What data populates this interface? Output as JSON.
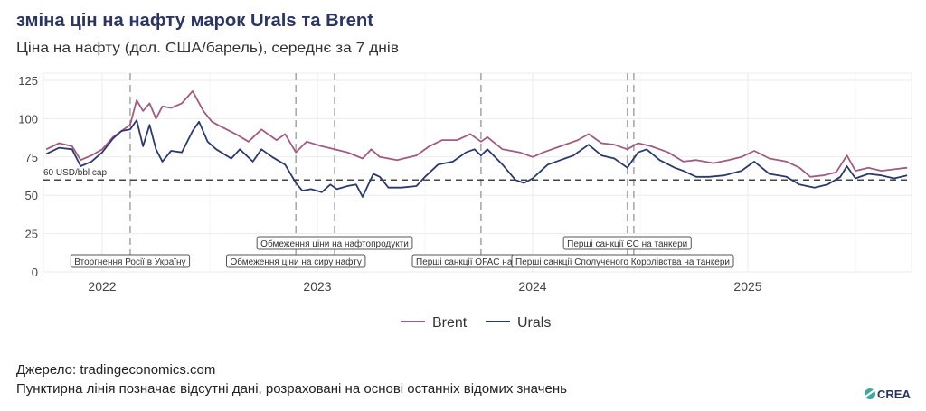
{
  "colors": {
    "brent": "#a05c80",
    "urals": "#2b3a6b",
    "title": "#2b3561"
  },
  "chart_data": {
    "type": "line",
    "title": "зміна цін на нафту марок Urals та Brent",
    "subtitle": "Ціна на нафту (дол. США/барель), середнє за 7 днів",
    "xlabel": "",
    "ylabel": "",
    "ylim": [
      0,
      125
    ],
    "xlim": [
      2021.72,
      2025.78
    ],
    "yticks": [
      0,
      25,
      50,
      75,
      100,
      125
    ],
    "xticks": [
      {
        "value": 2022,
        "label": "2022"
      },
      {
        "value": 2023,
        "label": "2023"
      },
      {
        "value": 2024,
        "label": "2024"
      },
      {
        "value": 2025,
        "label": "2025"
      }
    ],
    "grid": true,
    "legend_position": "bottom",
    "reference_line": {
      "value": 60,
      "label": "60 USD/bbl cap"
    },
    "events": [
      {
        "date": 2022.13,
        "label": "Вторгнення Росії в Україну",
        "row": 1
      },
      {
        "date": 2022.9,
        "label": "Обмеження ціни на сиру нафту",
        "row": 1
      },
      {
        "date": 2023.08,
        "label": "Обмеження ціни на нафтопродукти",
        "row": 0
      },
      {
        "date": 2023.76,
        "label": "Перші санкції OFAC на танкери",
        "row": 1
      },
      {
        "date": 2024.44,
        "label": "Перші санкції ЄС на танкери",
        "row": 0
      },
      {
        "date": 2024.47,
        "label": "Перші санкції Сполученого Королівства на танкери",
        "row": 1
      }
    ],
    "series": [
      {
        "name": "Brent",
        "points": [
          [
            2021.74,
            80
          ],
          [
            2021.8,
            84
          ],
          [
            2021.86,
            82
          ],
          [
            2021.9,
            73
          ],
          [
            2021.95,
            76
          ],
          [
            2022.0,
            80
          ],
          [
            2022.05,
            88
          ],
          [
            2022.09,
            92
          ],
          [
            2022.13,
            96
          ],
          [
            2022.16,
            112
          ],
          [
            2022.19,
            105
          ],
          [
            2022.22,
            110
          ],
          [
            2022.25,
            100
          ],
          [
            2022.28,
            108
          ],
          [
            2022.32,
            107
          ],
          [
            2022.37,
            110
          ],
          [
            2022.42,
            118
          ],
          [
            2022.47,
            105
          ],
          [
            2022.51,
            98
          ],
          [
            2022.55,
            95
          ],
          [
            2022.62,
            90
          ],
          [
            2022.68,
            85
          ],
          [
            2022.74,
            93
          ],
          [
            2022.81,
            86
          ],
          [
            2022.85,
            90
          ],
          [
            2022.9,
            78
          ],
          [
            2022.95,
            85
          ],
          [
            2023.02,
            82
          ],
          [
            2023.08,
            80
          ],
          [
            2023.14,
            78
          ],
          [
            2023.21,
            74
          ],
          [
            2023.25,
            80
          ],
          [
            2023.29,
            75
          ],
          [
            2023.37,
            73
          ],
          [
            2023.46,
            76
          ],
          [
            2023.52,
            82
          ],
          [
            2023.58,
            86
          ],
          [
            2023.65,
            86
          ],
          [
            2023.71,
            90
          ],
          [
            2023.76,
            85
          ],
          [
            2023.79,
            88
          ],
          [
            2023.86,
            80
          ],
          [
            2023.94,
            78
          ],
          [
            2024.0,
            75
          ],
          [
            2024.05,
            78
          ],
          [
            2024.13,
            82
          ],
          [
            2024.21,
            86
          ],
          [
            2024.26,
            90
          ],
          [
            2024.32,
            84
          ],
          [
            2024.38,
            83
          ],
          [
            2024.44,
            80
          ],
          [
            2024.49,
            84
          ],
          [
            2024.55,
            82
          ],
          [
            2024.63,
            78
          ],
          [
            2024.7,
            72
          ],
          [
            2024.76,
            73
          ],
          [
            2024.84,
            71
          ],
          [
            2024.91,
            73
          ],
          [
            2024.97,
            75
          ],
          [
            2025.03,
            79
          ],
          [
            2025.1,
            74
          ],
          [
            2025.18,
            72
          ],
          [
            2025.24,
            68
          ],
          [
            2025.29,
            62
          ],
          [
            2025.35,
            63
          ],
          [
            2025.41,
            65
          ],
          [
            2025.46,
            76
          ],
          [
            2025.5,
            66
          ],
          [
            2025.56,
            68
          ],
          [
            2025.62,
            66
          ],
          [
            2025.68,
            67
          ],
          [
            2025.74,
            68
          ]
        ]
      },
      {
        "name": "Urals",
        "points": [
          [
            2021.74,
            77
          ],
          [
            2021.8,
            81
          ],
          [
            2021.86,
            80
          ],
          [
            2021.9,
            69
          ],
          [
            2021.95,
            72
          ],
          [
            2022.0,
            78
          ],
          [
            2022.05,
            87
          ],
          [
            2022.09,
            92
          ],
          [
            2022.13,
            93
          ],
          [
            2022.16,
            99
          ],
          [
            2022.19,
            82
          ],
          [
            2022.22,
            96
          ],
          [
            2022.25,
            80
          ],
          [
            2022.28,
            72
          ],
          [
            2022.32,
            79
          ],
          [
            2022.37,
            78
          ],
          [
            2022.42,
            92
          ],
          [
            2022.45,
            98
          ],
          [
            2022.49,
            85
          ],
          [
            2022.53,
            80
          ],
          [
            2022.6,
            74
          ],
          [
            2022.64,
            80
          ],
          [
            2022.7,
            72
          ],
          [
            2022.74,
            80
          ],
          [
            2022.79,
            75
          ],
          [
            2022.85,
            70
          ],
          [
            2022.9,
            58
          ],
          [
            2022.93,
            53
          ],
          [
            2022.97,
            54
          ],
          [
            2023.02,
            52
          ],
          [
            2023.06,
            57
          ],
          [
            2023.09,
            54
          ],
          [
            2023.14,
            56
          ],
          [
            2023.18,
            57
          ],
          [
            2023.21,
            49
          ],
          [
            2023.26,
            64
          ],
          [
            2023.29,
            62
          ],
          [
            2023.33,
            55
          ],
          [
            2023.39,
            55
          ],
          [
            2023.46,
            56
          ],
          [
            2023.5,
            62
          ],
          [
            2023.56,
            70
          ],
          [
            2023.63,
            72
          ],
          [
            2023.69,
            78
          ],
          [
            2023.73,
            80
          ],
          [
            2023.76,
            76
          ],
          [
            2023.79,
            80
          ],
          [
            2023.86,
            70
          ],
          [
            2023.92,
            60
          ],
          [
            2023.96,
            58
          ],
          [
            2024.0,
            61
          ],
          [
            2024.07,
            70
          ],
          [
            2024.13,
            73
          ],
          [
            2024.19,
            76
          ],
          [
            2024.26,
            83
          ],
          [
            2024.32,
            76
          ],
          [
            2024.38,
            74
          ],
          [
            2024.44,
            68
          ],
          [
            2024.49,
            78
          ],
          [
            2024.53,
            80
          ],
          [
            2024.59,
            73
          ],
          [
            2024.66,
            68
          ],
          [
            2024.7,
            66
          ],
          [
            2024.76,
            62
          ],
          [
            2024.82,
            62
          ],
          [
            2024.89,
            63
          ],
          [
            2024.97,
            66
          ],
          [
            2025.03,
            72
          ],
          [
            2025.1,
            64
          ],
          [
            2025.18,
            62
          ],
          [
            2025.24,
            57
          ],
          [
            2025.31,
            55
          ],
          [
            2025.37,
            57
          ],
          [
            2025.43,
            62
          ],
          [
            2025.46,
            69
          ],
          [
            2025.5,
            61
          ],
          [
            2025.56,
            64
          ],
          [
            2025.62,
            63
          ],
          [
            2025.68,
            61
          ],
          [
            2025.74,
            63
          ]
        ]
      }
    ]
  },
  "footer": {
    "source": "Джерело: tradingeconomics.com",
    "note": "Пунктирна лінія позначає відсутні дані, розраховані на основі останніх відомих значень",
    "logo": "CREA"
  }
}
